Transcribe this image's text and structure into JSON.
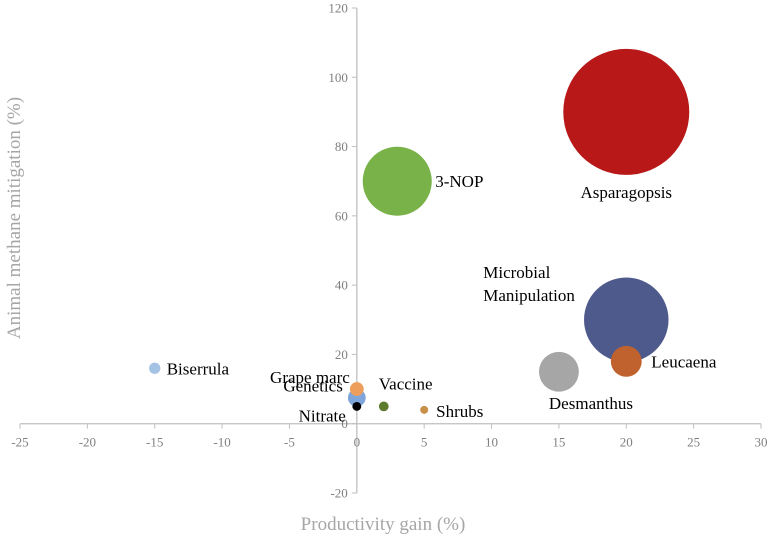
{
  "chart_data": {
    "type": "bubble",
    "xlabel": "Productivity gain (%)",
    "ylabel": "Animal methane mitigation (%)",
    "xlim": [
      -25,
      30
    ],
    "ylim": [
      -20,
      120
    ],
    "xticks": [
      -25,
      -20,
      -15,
      -10,
      -5,
      0,
      5,
      10,
      15,
      20,
      25,
      30
    ],
    "yticks": [
      -20,
      0,
      20,
      40,
      60,
      80,
      100,
      120
    ],
    "grid": false,
    "points": [
      {
        "label": "Asparagopsis",
        "x": 20,
        "y": 90,
        "size": 100,
        "color": "#b81818"
      },
      {
        "label": "3-NOP",
        "x": 3,
        "y": 70,
        "size": 30,
        "color": "#7ab24a"
      },
      {
        "label": "Microbial Manipulation",
        "lines": [
          "Microbial",
          "Manipulation"
        ],
        "x": 20,
        "y": 30,
        "size": 45,
        "color": "#4f5a8c"
      },
      {
        "label": "Leucaena",
        "x": 20,
        "y": 18,
        "size": 6,
        "color": "#c0622e"
      },
      {
        "label": "Desmanthus",
        "x": 15,
        "y": 15,
        "size": 10,
        "color": "#a6a6a6"
      },
      {
        "label": "Biserrula",
        "x": -15,
        "y": 16,
        "size": 0.8,
        "color": "#a4c2e4"
      },
      {
        "label": "Grape marc",
        "x": 0,
        "y": 10,
        "size": 1.2,
        "color": "#ed9e5c"
      },
      {
        "label": "Genetics",
        "x": 0,
        "y": 7.5,
        "size": 2,
        "color": "#7ea6da"
      },
      {
        "label": "Nitrate",
        "x": 0,
        "y": 5,
        "size": 0.5,
        "color": "#000000"
      },
      {
        "label": "Vaccine",
        "x": 2,
        "y": 5,
        "size": 0.6,
        "color": "#5e7a2c"
      },
      {
        "label": "Shrubs",
        "x": 5,
        "y": 4,
        "size": 0.4,
        "color": "#c9904a"
      }
    ]
  }
}
